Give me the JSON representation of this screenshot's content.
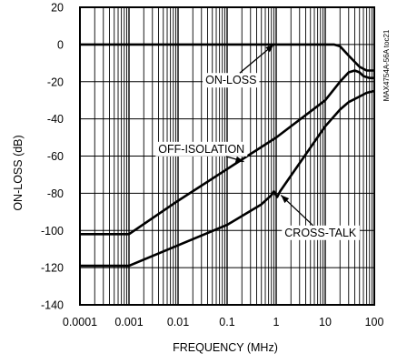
{
  "chart_data": {
    "type": "line",
    "title": "",
    "xlabel": "FREQUENCY (MHz)",
    "ylabel": "ON-LOSS (dB)",
    "x_scale": "log",
    "xlim": [
      0.0001,
      100
    ],
    "ylim": [
      -140,
      20
    ],
    "x_ticks": [
      0.0001,
      0.001,
      0.01,
      0.1,
      1,
      10,
      100
    ],
    "x_tick_labels": [
      "0.0001",
      "0.001",
      "0.01",
      "0.1",
      "1",
      "10",
      "100"
    ],
    "y_ticks": [
      20,
      0,
      -20,
      -40,
      -60,
      -80,
      -100,
      -120,
      -140
    ],
    "y_tick_labels": [
      "20",
      "0",
      "-20",
      "-40",
      "-60",
      "-80",
      "-100",
      "-120",
      "-140"
    ],
    "grid": true,
    "series": [
      {
        "key": "on-loss",
        "x": [
          0.0001,
          1,
          10,
          15,
          20,
          30,
          50,
          70,
          100
        ],
        "y": [
          0,
          0,
          0,
          0,
          -1,
          -6,
          -12,
          -14,
          -14
        ]
      },
      {
        "key": "off-isolation",
        "x": [
          0.0001,
          0.001,
          0.01,
          0.1,
          1,
          10,
          20,
          30,
          40,
          50,
          60,
          80,
          100
        ],
        "y": [
          -102,
          -102,
          -84,
          -67,
          -50,
          -30,
          -20,
          -15,
          -14,
          -15,
          -17,
          -18,
          -18
        ]
      },
      {
        "key": "cross-talk",
        "x": [
          0.0001,
          0.001,
          0.01,
          0.1,
          0.5,
          0.8,
          0.9,
          1.05,
          1.2,
          10,
          20,
          30,
          50,
          70,
          100
        ],
        "y": [
          -119,
          -119,
          -108,
          -97,
          -86,
          -81,
          -79,
          -82,
          -79,
          -44,
          -35,
          -31,
          -28,
          -26,
          -25
        ]
      }
    ],
    "annotations": [
      {
        "text": "ON-LOSS",
        "x": 0.12,
        "y": -19,
        "arrow_to_x": 0.9,
        "arrow_to_y": 0
      },
      {
        "text": "OFF-ISOLATION",
        "x": 0.03,
        "y": -56,
        "arrow_to_x": 0.22,
        "arrow_to_y": -63
      },
      {
        "text": "CROSS-TALK",
        "x": 8,
        "y": -101,
        "arrow_to_x": 1.25,
        "arrow_to_y": -81
      }
    ],
    "side_label": "MAX4754A-56A toc21"
  }
}
